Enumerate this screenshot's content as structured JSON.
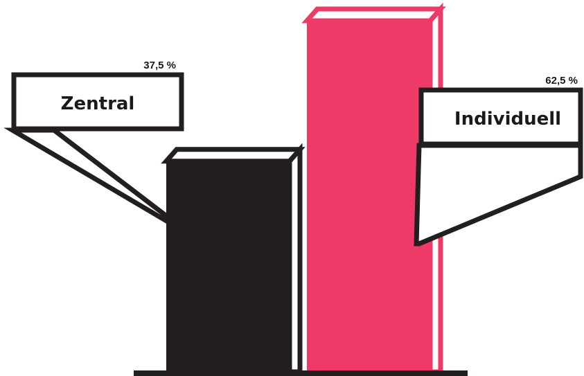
{
  "chart_data": {
    "type": "bar",
    "categories": [
      "Zentral",
      "Individuell"
    ],
    "values": [
      37.5,
      62.5
    ],
    "value_labels": [
      "37,5 %",
      "62,5 %"
    ],
    "unit": "%",
    "colors": [
      "#231f20",
      "#ee3a67"
    ],
    "ylim": [
      0,
      62.5
    ],
    "grid": false,
    "legend": "none"
  }
}
